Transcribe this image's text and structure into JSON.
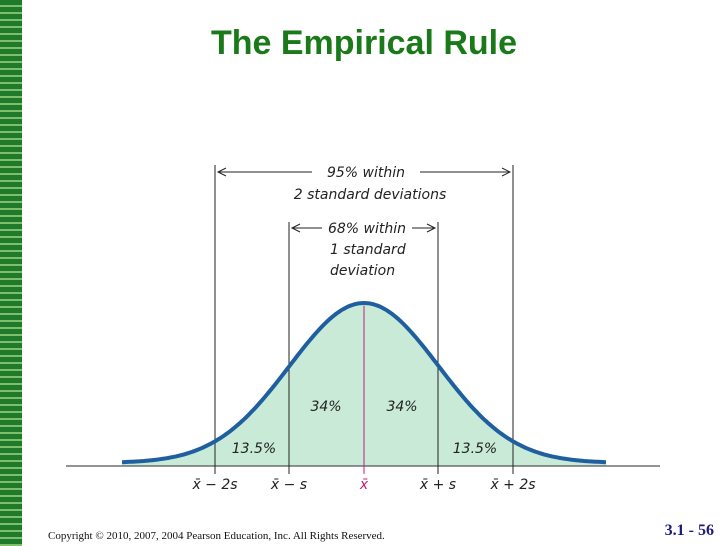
{
  "title": "The Empirical Rule",
  "annotations": {
    "within_95_line1": "95% within",
    "within_95_line2": "2 standard deviations",
    "within_68_line1": "68% within",
    "within_68_line2": "1 standard",
    "within_68_line3": "deviation"
  },
  "regions": {
    "left_inner": "34%",
    "right_inner": "34%",
    "left_outer": "13.5%",
    "right_outer": "13.5%"
  },
  "axis_labels": {
    "minus_2s": "x̄ − 2s",
    "minus_1s": "x̄ − s",
    "mean": "x̄",
    "plus_1s": "x̄ + s",
    "plus_2s": "x̄ + 2s"
  },
  "footer": {
    "copyright": "Copyright © 2010, 2007, 2004 Pearson Education, Inc. All Rights Reserved.",
    "page": "3.1 - 56"
  },
  "colors": {
    "title": "#1a7a1a",
    "curve": "#1f5fa0",
    "fill": "#c8ead6",
    "mean_line": "#c0207a"
  }
}
